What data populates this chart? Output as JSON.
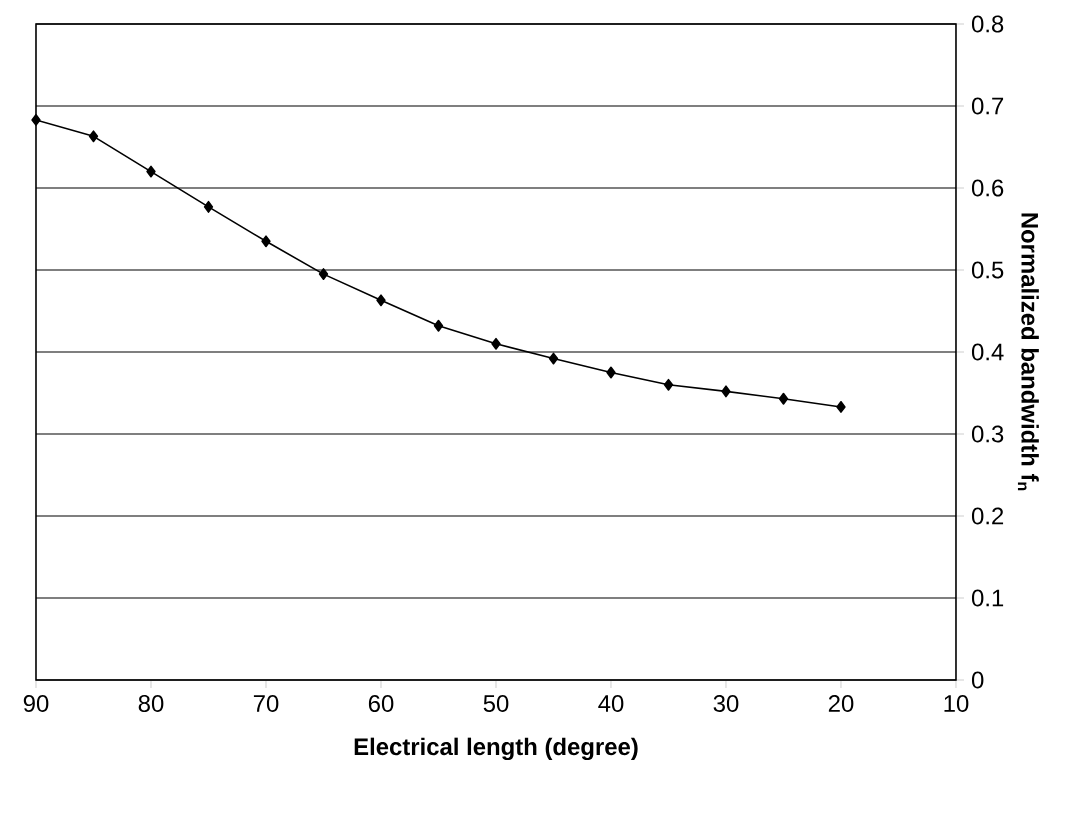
{
  "chart_data": {
    "type": "line",
    "xlabel": "Electrical length (degree)",
    "ylabel": "Normalized bandwidth f$_{n}$",
    "x": [
      90,
      85,
      80,
      75,
      70,
      65,
      60,
      55,
      50,
      45,
      40,
      35,
      30,
      25,
      20
    ],
    "series": [
      {
        "color": "#000000",
        "values": [
          0.683,
          0.663,
          0.62,
          0.577,
          0.535,
          0.495,
          0.463,
          0.432,
          0.41,
          0.392,
          0.375,
          0.36,
          0.352,
          0.343,
          0.333
        ]
      }
    ],
    "xlim": [
      90,
      10
    ],
    "xticks": [
      90,
      80,
      70,
      60,
      50,
      40,
      30,
      20,
      10
    ],
    "ylim": [
      0,
      0.8
    ],
    "yticks": [
      0,
      0.1,
      0.2,
      0.3,
      0.4,
      0.5,
      0.6,
      0.7,
      0.8
    ],
    "grid": "y",
    "marker": "diamond",
    "line_style": "solid"
  }
}
